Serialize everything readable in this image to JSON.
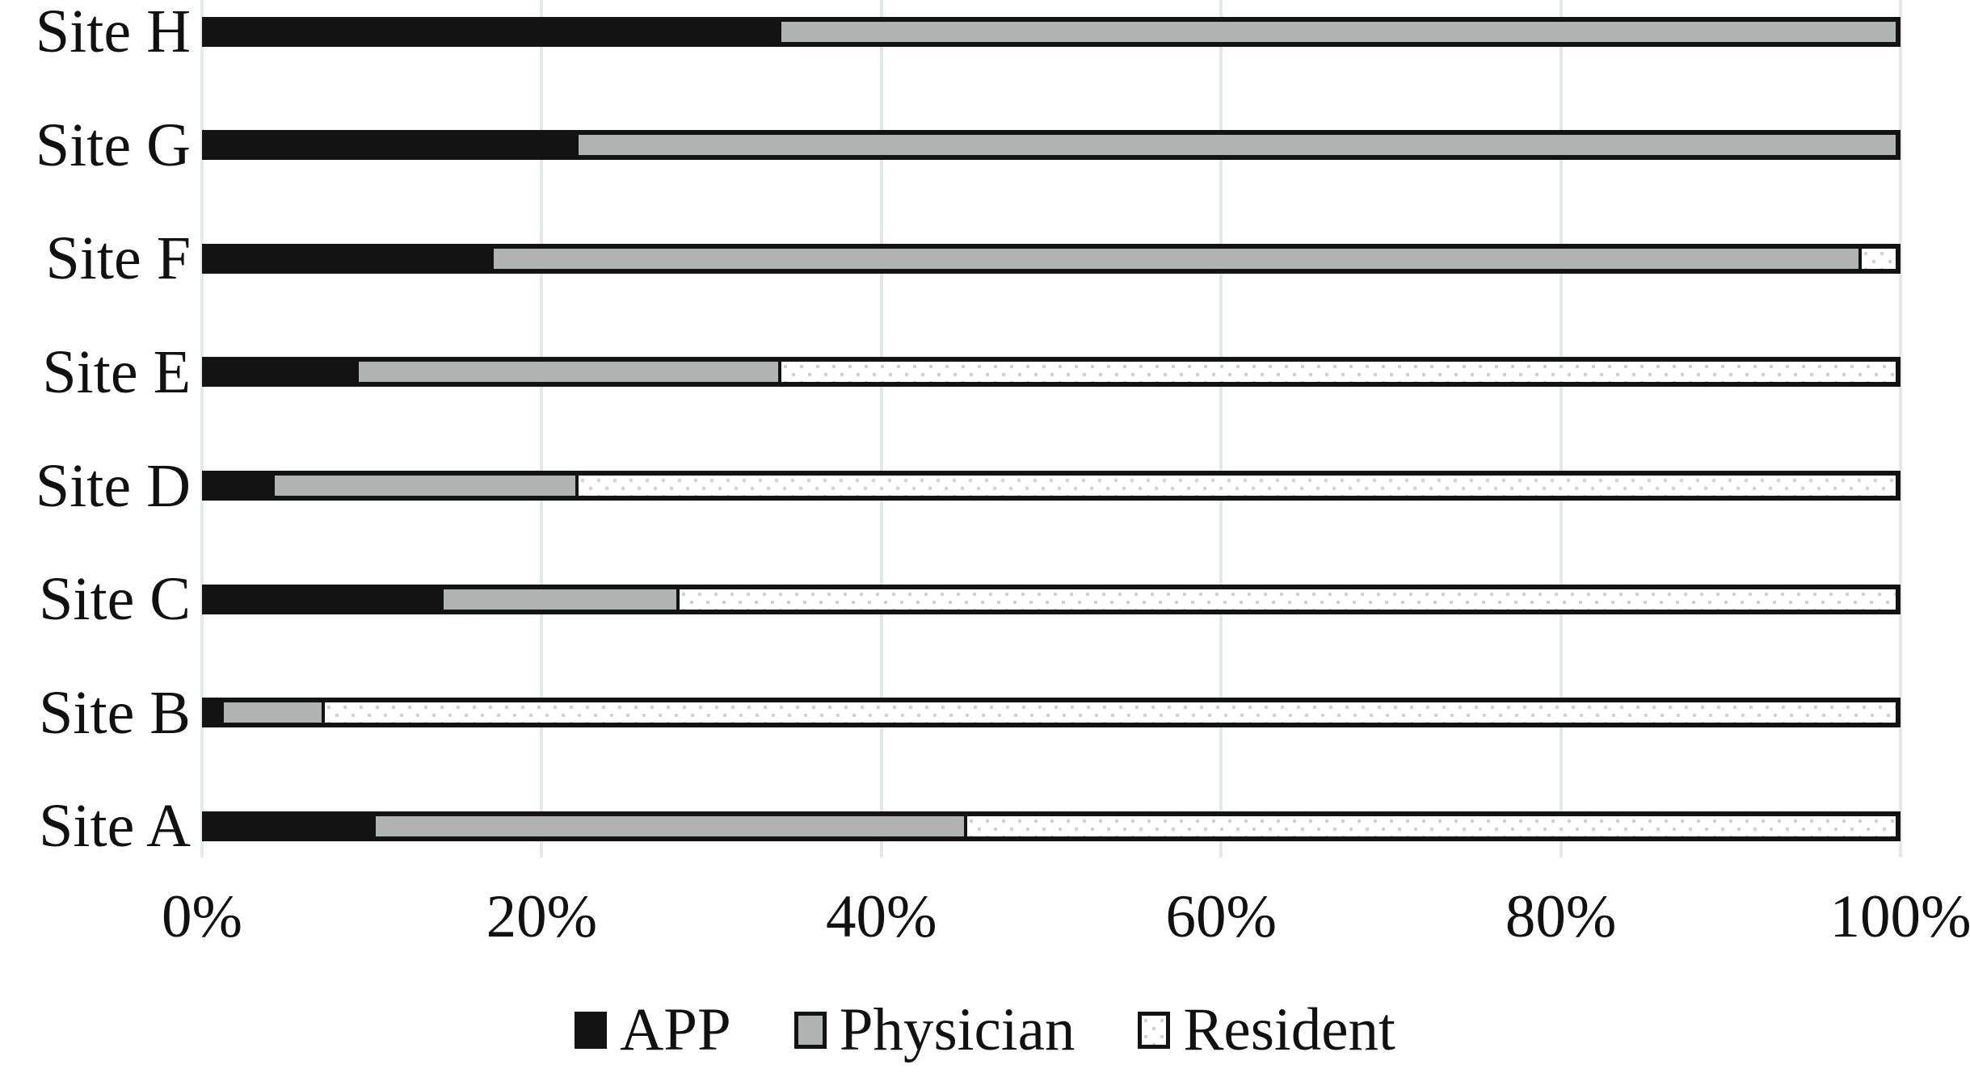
{
  "chart_data": {
    "type": "bar",
    "orientation": "horizontal",
    "stacked": true,
    "title": "",
    "xlabel": "",
    "ylabel": "",
    "xlim": [
      0,
      100
    ],
    "x_tick_labels": [
      "0%",
      "20%",
      "40%",
      "60%",
      "80%",
      "100%"
    ],
    "x_tick_values": [
      0,
      20,
      40,
      60,
      80,
      100
    ],
    "grid": "vertical",
    "legend_position": "bottom",
    "categories_top_to_bottom": [
      "Site H",
      "Site G",
      "Site F",
      "Site E",
      "Site D",
      "Site C",
      "Site B",
      "Site A"
    ],
    "series": [
      {
        "name": "APP",
        "swatch": "solid-black",
        "color": "#131313",
        "values": [
          34,
          22,
          17,
          9,
          4,
          14,
          1,
          10
        ]
      },
      {
        "name": "Physician",
        "swatch": "solid-gray",
        "color": "#afb3b2",
        "values": [
          66,
          78,
          81,
          25,
          18,
          14,
          6,
          35
        ]
      },
      {
        "name": "Resident",
        "swatch": "dotted-white",
        "color": "#ffffff",
        "values": [
          0,
          0,
          2,
          66,
          78,
          72,
          93,
          55
        ]
      }
    ],
    "colors": {
      "bar_outline": "#131313",
      "app_fill": "#131313",
      "physician_fill": "#afb3b2",
      "resident_fill": "#ffffff",
      "resident_dot": "#ccd2d1",
      "gridline": "#e3e8e8",
      "text": "#111111"
    }
  }
}
